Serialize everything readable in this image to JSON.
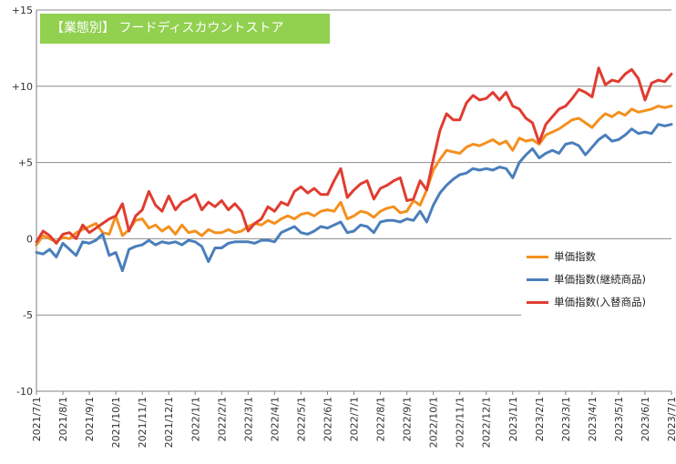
{
  "chart_data": {
    "type": "line",
    "title": "【業態別】 フードディスカウントストア",
    "xlabel": "",
    "ylabel": "",
    "ylim": [
      -10,
      15
    ],
    "yticks": [
      -10,
      -5,
      0,
      5,
      10,
      15
    ],
    "ytick_labels": [
      "-10",
      "-5",
      "0",
      "+5",
      "+10",
      "+15"
    ],
    "xlim": [
      0,
      24
    ],
    "x_tick_labels": [
      "2021/7/1",
      "2021/8/1",
      "2021/9/1",
      "2021/10/1",
      "2021/11/1",
      "2021/12/1",
      "2022/1/1",
      "2022/2/1",
      "2022/3/1",
      "2022/4/1",
      "2022/5/1",
      "2022/6/1",
      "2022/7/1",
      "2022/8/1",
      "2022/9/1",
      "2022/10/1",
      "2022/11/1",
      "2022/12/1",
      "2023/1/1",
      "2023/2/1",
      "2023/3/1",
      "2023/4/1",
      "2023/5/1",
      "2023/6/1",
      "2023/7/1"
    ],
    "grid": "horizontal",
    "legend_position": "right",
    "series": [
      {
        "name": "単価指数",
        "color": "#f4901e",
        "x": [
          0,
          0.25,
          0.5,
          0.75,
          1,
          1.25,
          1.5,
          1.75,
          2,
          2.25,
          2.5,
          2.75,
          3,
          3.25,
          3.5,
          3.75,
          4,
          4.25,
          4.5,
          4.75,
          5,
          5.25,
          5.5,
          5.75,
          6,
          6.25,
          6.5,
          6.75,
          7,
          7.25,
          7.5,
          7.75,
          8,
          8.25,
          8.5,
          8.75,
          9,
          9.25,
          9.5,
          9.75,
          10,
          10.25,
          10.5,
          10.75,
          11,
          11.25,
          11.5,
          11.75,
          12,
          12.25,
          12.5,
          12.75,
          13,
          13.25,
          13.5,
          13.75,
          14,
          14.25,
          14.5,
          14.75,
          15,
          15.25,
          15.5,
          15.75,
          16,
          16.25,
          16.5,
          16.75,
          17,
          17.25,
          17.5,
          17.75,
          18,
          18.25,
          18.5,
          18.75,
          19,
          19.25,
          19.5,
          19.75,
          20,
          20.25,
          20.5,
          20.75,
          21,
          21.25,
          21.5,
          21.75,
          22,
          22.25,
          22.5,
          22.75,
          23,
          23.25,
          23.5,
          23.75,
          24
        ],
        "values": [
          -0.4,
          0.2,
          0.0,
          -0.2,
          0.1,
          0.0,
          0.4,
          0.6,
          0.8,
          1.0,
          0.4,
          0.3,
          1.5,
          0.2,
          0.6,
          1.2,
          1.3,
          0.7,
          0.9,
          0.5,
          0.8,
          0.3,
          0.9,
          0.4,
          0.5,
          0.2,
          0.6,
          0.4,
          0.4,
          0.6,
          0.4,
          0.5,
          0.8,
          1.0,
          0.9,
          1.2,
          1.0,
          1.3,
          1.5,
          1.3,
          1.6,
          1.7,
          1.5,
          1.8,
          1.9,
          1.8,
          2.4,
          1.3,
          1.5,
          1.8,
          1.7,
          1.4,
          1.8,
          2.0,
          2.1,
          1.7,
          1.8,
          2.5,
          2.2,
          3.2,
          4.5,
          5.2,
          5.8,
          5.7,
          5.6,
          6.0,
          6.2,
          6.1,
          6.3,
          6.5,
          6.2,
          6.4,
          5.8,
          6.6,
          6.4,
          6.5,
          6.2,
          6.8,
          7.0,
          7.2,
          7.5,
          7.8,
          7.9,
          7.6,
          7.3,
          7.8,
          8.2,
          8.0,
          8.3,
          8.1,
          8.5,
          8.3,
          8.4,
          8.5,
          8.7,
          8.6,
          8.7
        ]
      },
      {
        "name": "単価指数(継続商品)",
        "color": "#4a7ebb",
        "x": [
          0,
          0.25,
          0.5,
          0.75,
          1,
          1.25,
          1.5,
          1.75,
          2,
          2.25,
          2.5,
          2.75,
          3,
          3.25,
          3.5,
          3.75,
          4,
          4.25,
          4.5,
          4.75,
          5,
          5.25,
          5.5,
          5.75,
          6,
          6.25,
          6.5,
          6.75,
          7,
          7.25,
          7.5,
          7.75,
          8,
          8.25,
          8.5,
          8.75,
          9,
          9.25,
          9.5,
          9.75,
          10,
          10.25,
          10.5,
          10.75,
          11,
          11.25,
          11.5,
          11.75,
          12,
          12.25,
          12.5,
          12.75,
          13,
          13.25,
          13.5,
          13.75,
          14,
          14.25,
          14.5,
          14.75,
          15,
          15.25,
          15.5,
          15.75,
          16,
          16.25,
          16.5,
          16.75,
          17,
          17.25,
          17.5,
          17.75,
          18,
          18.25,
          18.5,
          18.75,
          19,
          19.25,
          19.5,
          19.75,
          20,
          20.25,
          20.5,
          20.75,
          21,
          21.25,
          21.5,
          21.75,
          22,
          22.25,
          22.5,
          22.75,
          23,
          23.25,
          23.5,
          23.75,
          24
        ],
        "values": [
          -0.9,
          -1.0,
          -0.7,
          -1.2,
          -0.3,
          -0.7,
          -1.1,
          -0.2,
          -0.3,
          -0.1,
          0.3,
          -1.1,
          -0.9,
          -2.1,
          -0.7,
          -0.5,
          -0.4,
          -0.1,
          -0.4,
          -0.2,
          -0.3,
          -0.2,
          -0.4,
          -0.1,
          -0.2,
          -0.5,
          -1.5,
          -0.6,
          -0.6,
          -0.3,
          -0.2,
          -0.2,
          -0.2,
          -0.3,
          -0.1,
          -0.1,
          -0.2,
          0.4,
          0.6,
          0.8,
          0.4,
          0.3,
          0.5,
          0.8,
          0.7,
          0.9,
          1.1,
          0.4,
          0.5,
          0.9,
          0.8,
          0.4,
          1.1,
          1.2,
          1.2,
          1.1,
          1.3,
          1.2,
          1.8,
          1.1,
          2.2,
          3.0,
          3.5,
          3.9,
          4.2,
          4.3,
          4.6,
          4.5,
          4.6,
          4.5,
          4.7,
          4.6,
          4.0,
          5.0,
          5.5,
          5.9,
          5.3,
          5.6,
          5.8,
          5.6,
          6.2,
          6.3,
          6.1,
          5.5,
          6.0,
          6.5,
          6.8,
          6.4,
          6.5,
          6.8,
          7.2,
          6.9,
          7.0,
          6.9,
          7.5,
          7.4,
          7.5
        ]
      },
      {
        "name": "単価指数(入替商品)",
        "color": "#e03c31",
        "x": [
          0,
          0.25,
          0.5,
          0.75,
          1,
          1.25,
          1.5,
          1.75,
          2,
          2.25,
          2.5,
          2.75,
          3,
          3.25,
          3.5,
          3.75,
          4,
          4.25,
          4.5,
          4.75,
          5,
          5.25,
          5.5,
          5.75,
          6,
          6.25,
          6.5,
          6.75,
          7,
          7.25,
          7.5,
          7.75,
          8,
          8.25,
          8.5,
          8.75,
          9,
          9.25,
          9.5,
          9.75,
          10,
          10.25,
          10.5,
          10.75,
          11,
          11.25,
          11.5,
          11.75,
          12,
          12.25,
          12.5,
          12.75,
          13,
          13.25,
          13.5,
          13.75,
          14,
          14.25,
          14.5,
          14.75,
          15,
          15.25,
          15.5,
          15.75,
          16,
          16.25,
          16.5,
          16.75,
          17,
          17.25,
          17.5,
          17.75,
          18,
          18.25,
          18.5,
          18.75,
          19,
          19.25,
          19.5,
          19.75,
          20,
          20.25,
          20.5,
          20.75,
          21,
          21.25,
          21.5,
          21.75,
          22,
          22.25,
          22.5,
          22.75,
          23,
          23.25,
          23.5,
          23.75,
          24
        ],
        "values": [
          -0.2,
          0.5,
          0.2,
          -0.3,
          0.3,
          0.4,
          0.0,
          0.9,
          0.4,
          0.7,
          1.0,
          1.3,
          1.5,
          2.3,
          0.5,
          1.5,
          1.9,
          3.1,
          2.2,
          1.8,
          2.8,
          1.9,
          2.4,
          2.6,
          2.9,
          1.9,
          2.4,
          2.1,
          2.5,
          1.9,
          2.3,
          1.8,
          0.5,
          1.0,
          1.3,
          2.1,
          1.8,
          2.4,
          2.2,
          3.1,
          3.4,
          3.0,
          3.3,
          2.9,
          2.9,
          3.8,
          4.6,
          2.7,
          3.2,
          3.6,
          3.8,
          2.6,
          3.3,
          3.5,
          3.8,
          4.0,
          2.5,
          2.6,
          3.8,
          3.2,
          5.2,
          7.1,
          8.2,
          7.8,
          7.8,
          8.9,
          9.4,
          9.1,
          9.2,
          9.6,
          9.1,
          9.6,
          8.7,
          8.5,
          7.9,
          7.6,
          6.3,
          7.5,
          8.0,
          8.5,
          8.7,
          9.2,
          9.8,
          9.6,
          9.3,
          11.2,
          10.1,
          10.4,
          10.3,
          10.8,
          11.1,
          10.5,
          9.1,
          10.2,
          10.4,
          10.3,
          10.8
        ]
      }
    ]
  }
}
